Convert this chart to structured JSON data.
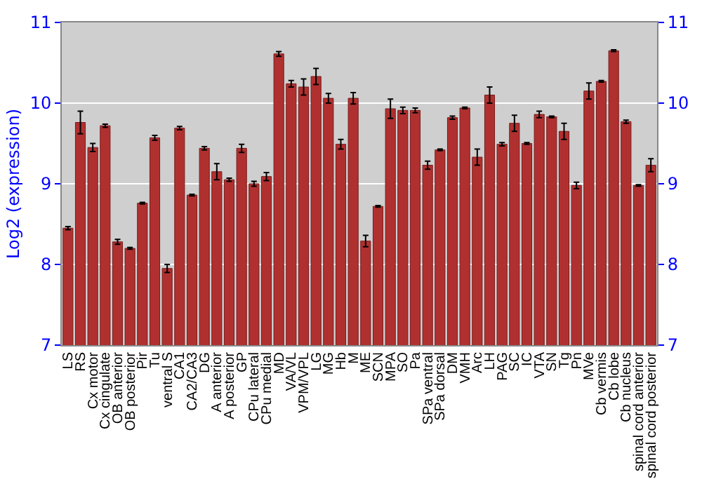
{
  "chart_data": {
    "type": "bar",
    "ylabel": "Log2 (expression)",
    "categories": [
      "LS",
      "RS",
      "Cx motor",
      "Cx cingulate",
      "OB anterior",
      "OB posterior",
      "Pir",
      "Tu",
      "ventral S",
      "CA1",
      "CA2/CA3",
      "DG",
      "A anterior",
      "A posterior",
      "GP",
      "CPu lateral",
      "CPu medial",
      "MD",
      "VA/VL",
      "VPM/VPL",
      "LG",
      "MG",
      "Hb",
      "M",
      "ME",
      "SCN",
      "MPA",
      "SO",
      "Pa",
      "SPa ventral",
      "SPa dorsal",
      "DM",
      "VMH",
      "Arc",
      "LH",
      "PAG",
      "SC",
      "IC",
      "VTA",
      "SN",
      "Tg",
      "Pn",
      "MVe",
      "Cb vermis",
      "Cb lobe",
      "Cb nucleus",
      "spinal cord anterior",
      "spinal cord posterior"
    ],
    "values": [
      8.45,
      9.76,
      9.45,
      9.72,
      8.28,
      8.2,
      8.76,
      9.57,
      7.95,
      9.69,
      8.86,
      9.44,
      9.15,
      9.05,
      9.44,
      9.0,
      9.09,
      10.61,
      10.24,
      10.2,
      10.33,
      10.06,
      9.49,
      10.06,
      8.29,
      8.72,
      9.93,
      9.91,
      9.91,
      9.23,
      9.42,
      9.82,
      9.94,
      9.33,
      10.1,
      9.49,
      9.75,
      9.5,
      9.86,
      9.83,
      9.65,
      8.98,
      10.15,
      10.27,
      10.65,
      9.77,
      8.98,
      9.23
    ],
    "errors": [
      0.02,
      0.14,
      0.05,
      0.02,
      0.03,
      0.01,
      0.01,
      0.03,
      0.05,
      0.02,
      0.01,
      0.02,
      0.1,
      0.02,
      0.05,
      0.03,
      0.05,
      0.03,
      0.04,
      0.1,
      0.1,
      0.06,
      0.06,
      0.07,
      0.07,
      0.01,
      0.12,
      0.04,
      0.03,
      0.05,
      0.01,
      0.02,
      0.01,
      0.1,
      0.1,
      0.02,
      0.1,
      0.01,
      0.04,
      0.01,
      0.1,
      0.04,
      0.1,
      0.01,
      0.01,
      0.02,
      0.01,
      0.08
    ],
    "color": "#b03030",
    "ylim": [
      7,
      11
    ],
    "yticks": [
      7,
      8,
      9,
      10,
      11
    ],
    "y2lim": [
      7,
      11
    ],
    "y2ticks": [
      7,
      8,
      9,
      10,
      11
    ],
    "grid": "y"
  }
}
